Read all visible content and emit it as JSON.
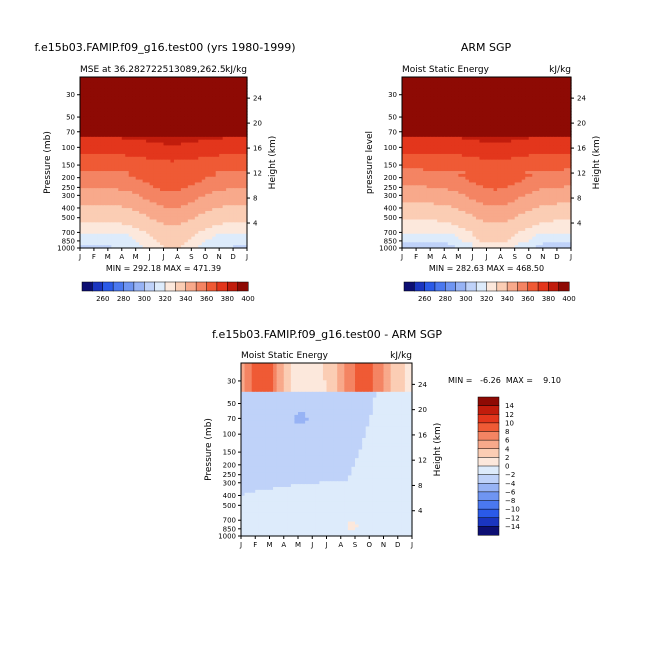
{
  "figure": {
    "colors": {
      "outline": "#000000",
      "background": "#ffffff"
    }
  },
  "chart_data": [
    {
      "id": "model",
      "type": "contour",
      "title": "f.e15b03.FAMIP.f09_g16.test00 (yrs 1980-1999)",
      "left_subtitle": "MSE at 36.282722513089,262.5",
      "right_subtitle": "kJ/kg",
      "ylabel": "Pressure (mb)",
      "right_axis_label": "Height (km)",
      "x_ticks": [
        "J",
        "F",
        "M",
        "A",
        "M",
        "J",
        "J",
        "A",
        "S",
        "O",
        "N",
        "D",
        "J"
      ],
      "pressure_ticks": [
        30,
        50,
        70,
        100,
        150,
        200,
        250,
        300,
        400,
        500,
        700,
        850,
        1000
      ],
      "height_ticks": [
        24,
        20,
        16,
        12,
        8,
        4
      ],
      "ylim_pressure_mb": [
        1000,
        20
      ],
      "stats": "MIN = 292.18  MAX = 471.39",
      "min": 292.18,
      "max": 471.39,
      "colorbar": {
        "orientation": "horizontal",
        "levels": [
          250,
          260,
          270,
          280,
          290,
          300,
          310,
          320,
          330,
          340,
          350,
          360,
          370,
          380,
          390,
          400,
          410
        ],
        "tick_labels": [
          "260",
          "280",
          "300",
          "320",
          "340",
          "360",
          "380",
          "400"
        ],
        "colors": [
          "#0d0f73",
          "#1a35c0",
          "#2a5ae8",
          "#4a78f0",
          "#6f95f2",
          "#97b3f5",
          "#bfd2f9",
          "#ddebfb",
          "#fce8dc",
          "#fbcdb4",
          "#f8a98b",
          "#f48463",
          "#ef5a35",
          "#e3361c",
          "#c11c0c",
          "#8e0a04"
        ]
      }
    },
    {
      "id": "obs",
      "type": "contour",
      "title": "ARM SGP",
      "left_subtitle": "Moist Static Energy",
      "right_subtitle": "kJ/kg",
      "ylabel": "pressure level",
      "right_axis_label": "Height (km)",
      "x_ticks": [
        "J",
        "F",
        "M",
        "A",
        "M",
        "J",
        "J",
        "A",
        "S",
        "O",
        "N",
        "D",
        "J"
      ],
      "pressure_ticks": [
        30,
        50,
        70,
        100,
        150,
        200,
        250,
        300,
        400,
        500,
        700,
        850,
        1000
      ],
      "height_ticks": [
        24,
        20,
        16,
        12,
        8,
        4
      ],
      "ylim_pressure_mb": [
        1000,
        20
      ],
      "stats": "MIN = 282.63  MAX = 468.50",
      "min": 282.63,
      "max": 468.5,
      "colorbar": {
        "orientation": "horizontal",
        "levels": [
          250,
          260,
          270,
          280,
          290,
          300,
          310,
          320,
          330,
          340,
          350,
          360,
          370,
          380,
          390,
          400,
          410
        ],
        "tick_labels": [
          "260",
          "280",
          "300",
          "320",
          "340",
          "360",
          "380",
          "400"
        ],
        "colors": [
          "#0d0f73",
          "#1a35c0",
          "#2a5ae8",
          "#4a78f0",
          "#6f95f2",
          "#97b3f5",
          "#bfd2f9",
          "#ddebfb",
          "#fce8dc",
          "#fbcdb4",
          "#f8a98b",
          "#f48463",
          "#ef5a35",
          "#e3361c",
          "#c11c0c",
          "#8e0a04"
        ]
      }
    },
    {
      "id": "diff",
      "type": "contour",
      "title": "f.e15b03.FAMIP.f09_g16.test00 - ARM SGP",
      "left_subtitle": "Moist Static Energy",
      "right_subtitle": "kJ/kg",
      "ylabel": "Pressure (mb)",
      "right_axis_label": "Height (km)",
      "x_ticks": [
        "J",
        "F",
        "M",
        "A",
        "M",
        "J",
        "J",
        "A",
        "S",
        "O",
        "N",
        "D",
        "J"
      ],
      "pressure_ticks": [
        30,
        50,
        70,
        100,
        150,
        200,
        250,
        300,
        400,
        500,
        700,
        850,
        1000
      ],
      "height_ticks": [
        24,
        20,
        16,
        12,
        8,
        4
      ],
      "ylim_pressure_mb": [
        1000,
        20
      ],
      "stats": "MIN =   -6.26  MAX =    9.10",
      "min": -6.26,
      "max": 9.1,
      "colorbar": {
        "orientation": "vertical",
        "levels": [
          -16,
          -14,
          -12,
          -10,
          -8,
          -6,
          -4,
          -2,
          0,
          2,
          4,
          6,
          8,
          10,
          12,
          14,
          16
        ],
        "tick_labels": [
          "14",
          "12",
          "10",
          "8",
          "6",
          "4",
          "2",
          "0",
          "−2",
          "−4",
          "−6",
          "−8",
          "−10",
          "−12",
          "−14"
        ],
        "colors": [
          "#0d0f73",
          "#1a35c0",
          "#2a5ae8",
          "#4a78f0",
          "#6f95f2",
          "#97b3f5",
          "#bfd2f9",
          "#ddebfb",
          "#fce8dc",
          "#fbcdb4",
          "#f8a98b",
          "#f48463",
          "#ef5a35",
          "#e3361c",
          "#c11c0c",
          "#8e0a04"
        ]
      }
    }
  ]
}
